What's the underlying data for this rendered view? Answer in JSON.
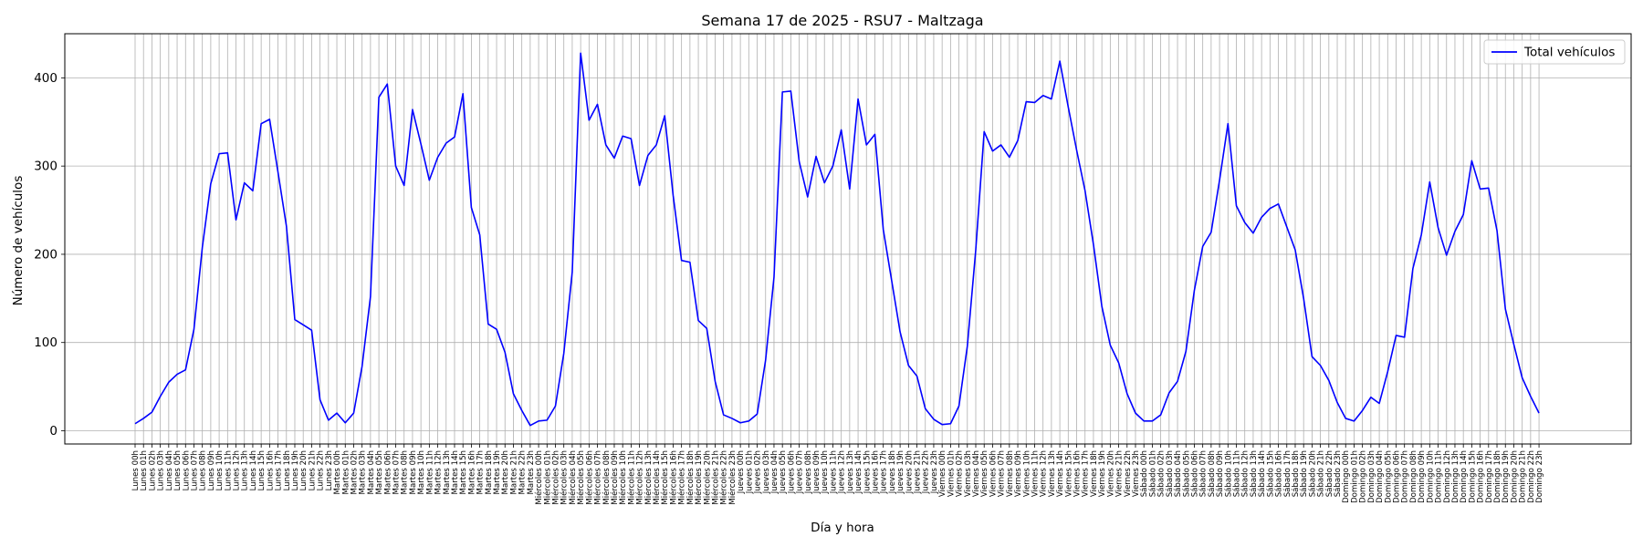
{
  "chart_data": {
    "type": "line",
    "title": "Semana 17 de 2025 - RSU7 - Maltzaga",
    "xlabel": "Día y hora",
    "ylabel": "Número de vehículos",
    "ylim": [
      -15,
      450
    ],
    "y_ticks": [
      0,
      100,
      200,
      300,
      400
    ],
    "grid": true,
    "legend_position": "top-right",
    "days": [
      "Lunes",
      "Martes",
      "Miércoles",
      "Jueves",
      "Viernes",
      "Sábado",
      "Domingo"
    ],
    "series": [
      {
        "name": "Total vehículos",
        "color": "#0000ff",
        "values": [
          8,
          14,
          21,
          39,
          55,
          64,
          69,
          115,
          208,
          280,
          314,
          315,
          239,
          281,
          272,
          348,
          353,
          293,
          232,
          126,
          120,
          114,
          35,
          12,
          20,
          9,
          20,
          73,
          152,
          378,
          393,
          300,
          278,
          364,
          325,
          284,
          310,
          326,
          333,
          382,
          253,
          222,
          121,
          115,
          89,
          42,
          23,
          6,
          11,
          12,
          28,
          88,
          180,
          428,
          352,
          370,
          324,
          309,
          334,
          331,
          278,
          312,
          324,
          357,
          267,
          193,
          191,
          125,
          116,
          56,
          18,
          14,
          9,
          11,
          19,
          80,
          174,
          384,
          385,
          305,
          265,
          311,
          281,
          300,
          341,
          274,
          376,
          324,
          336,
          228,
          170,
          112,
          74,
          62,
          25,
          13,
          7,
          8,
          28,
          96,
          205,
          339,
          317,
          324,
          310,
          329,
          373,
          372,
          380,
          376,
          419,
          367,
          318,
          272,
          211,
          141,
          97,
          77,
          42,
          20,
          11,
          11,
          18,
          43,
          56,
          90,
          159,
          209,
          225,
          284,
          348,
          255,
          236,
          224,
          242,
          252,
          257,
          231,
          205,
          150,
          84,
          74,
          57,
          32,
          14,
          11,
          23,
          38,
          31,
          67,
          108,
          106,
          184,
          222,
          282,
          230,
          199,
          226,
          245,
          306,
          274,
          275,
          227,
          138,
          98,
          60,
          39,
          20
        ]
      }
    ]
  }
}
